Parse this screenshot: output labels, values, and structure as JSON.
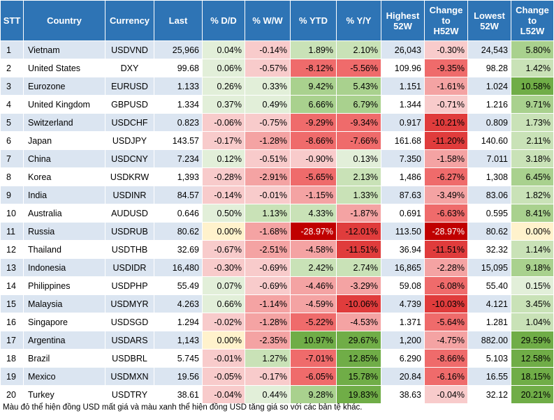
{
  "chart_data": {
    "type": "table",
    "columns": [
      "STT",
      "Country",
      "Currency",
      "Last",
      "% D/D",
      "% W/W",
      "% YTD",
      "% Y/Y",
      "Highest 52W",
      "Change to H52W",
      "Lowest 52W",
      "Change to L52W"
    ],
    "header_lines": [
      [
        "STT"
      ],
      [
        "Country"
      ],
      [
        "Currency"
      ],
      [
        "Last"
      ],
      [
        "% D/D"
      ],
      [
        "% W/W"
      ],
      [
        "% YTD"
      ],
      [
        "% Y/Y"
      ],
      [
        "Highest",
        "52W"
      ],
      [
        "Change",
        "to",
        "H52W"
      ],
      [
        "Lowest",
        "52W"
      ],
      [
        "Change",
        "to",
        "L52W"
      ]
    ],
    "rows": [
      [
        "1",
        "Vietnam",
        "USDVND",
        "25,966",
        "0.04%",
        "-0.14%",
        "1.89%",
        "2.10%",
        "26,043",
        "-0.30%",
        "24,543",
        "5.80%"
      ],
      [
        "2",
        "United States",
        "DXY",
        "99.68",
        "0.06%",
        "-0.57%",
        "-8.12%",
        "-5.56%",
        "109.96",
        "-9.35%",
        "98.28",
        "1.42%"
      ],
      [
        "3",
        "Eurozone",
        "EURUSD",
        "1.133",
        "0.26%",
        "0.33%",
        "9.42%",
        "5.43%",
        "1.151",
        "-1.61%",
        "1.024",
        "10.58%"
      ],
      [
        "4",
        "United Kingdom",
        "GBPUSD",
        "1.334",
        "0.37%",
        "0.49%",
        "6.66%",
        "6.79%",
        "1.344",
        "-0.71%",
        "1.216",
        "9.71%"
      ],
      [
        "5",
        "Switzerland",
        "USDCHF",
        "0.823",
        "-0.06%",
        "-0.75%",
        "-9.29%",
        "-9.34%",
        "0.917",
        "-10.21%",
        "0.809",
        "1.73%"
      ],
      [
        "6",
        "Japan",
        "USDJPY",
        "143.57",
        "-0.17%",
        "-1.28%",
        "-8.66%",
        "-7.66%",
        "161.68",
        "-11.20%",
        "140.60",
        "2.11%"
      ],
      [
        "7",
        "China",
        "USDCNY",
        "7.234",
        "0.12%",
        "-0.51%",
        "-0.90%",
        "0.13%",
        "7.350",
        "-1.58%",
        "7.011",
        "3.18%"
      ],
      [
        "8",
        "Korea",
        "USDKRW",
        "1,393",
        "-0.28%",
        "-2.91%",
        "-5.65%",
        "2.13%",
        "1,486",
        "-6.27%",
        "1,308",
        "6.45%"
      ],
      [
        "9",
        "India",
        "USDINR",
        "84.57",
        "-0.14%",
        "-0.01%",
        "-1.15%",
        "1.33%",
        "87.63",
        "-3.49%",
        "83.06",
        "1.82%"
      ],
      [
        "10",
        "Australia",
        "AUDUSD",
        "0.646",
        "0.50%",
        "1.13%",
        "4.33%",
        "-1.87%",
        "0.691",
        "-6.63%",
        "0.595",
        "8.41%"
      ],
      [
        "11",
        "Russia",
        "USDRUB",
        "80.62",
        "0.00%",
        "-1.68%",
        "-28.97%",
        "-12.01%",
        "113.50",
        "-28.97%",
        "80.62",
        "0.00%"
      ],
      [
        "12",
        "Thailand",
        "USDTHB",
        "32.69",
        "-0.67%",
        "-2.51%",
        "-4.58%",
        "-11.51%",
        "36.94",
        "-11.51%",
        "32.32",
        "1.14%"
      ],
      [
        "13",
        "Indonesia",
        "USDIDR",
        "16,480",
        "-0.30%",
        "-0.69%",
        "2.42%",
        "2.74%",
        "16,865",
        "-2.28%",
        "15,095",
        "9.18%"
      ],
      [
        "14",
        "Philippines",
        "USDPHP",
        "55.49",
        "0.07%",
        "-0.69%",
        "-4.46%",
        "-3.29%",
        "59.08",
        "-6.08%",
        "55.40",
        "0.15%"
      ],
      [
        "15",
        "Malaysia",
        "USDMYR",
        "4.263",
        "0.66%",
        "-1.14%",
        "-4.59%",
        "-10.06%",
        "4.739",
        "-10.03%",
        "4.121",
        "3.45%"
      ],
      [
        "16",
        "Singapore",
        "USDSGD",
        "1.294",
        "-0.02%",
        "-1.28%",
        "-5.22%",
        "-4.53%",
        "1.371",
        "-5.64%",
        "1.281",
        "1.04%"
      ],
      [
        "17",
        "Argentina",
        "USDARS",
        "1,143",
        "0.00%",
        "-2.35%",
        "10.97%",
        "29.67%",
        "1,200",
        "-4.75%",
        "882.00",
        "29.59%"
      ],
      [
        "18",
        "Brazil",
        "USDBRL",
        "5.745",
        "-0.01%",
        "1.27%",
        "-7.01%",
        "12.85%",
        "6.290",
        "-8.66%",
        "5.103",
        "12.58%"
      ],
      [
        "19",
        "Mexico",
        "USDMXN",
        "19.56",
        "-0.05%",
        "-0.17%",
        "-6.05%",
        "15.78%",
        "20.84",
        "-6.16%",
        "16.55",
        "18.15%"
      ],
      [
        "20",
        "Turkey",
        "USDTRY",
        "38.61",
        "-0.04%",
        "0.44%",
        "9.28%",
        "19.83%",
        "38.63",
        "-0.04%",
        "32.12",
        "20.21%"
      ]
    ],
    "heatmap_columns": [
      4,
      5,
      6,
      7,
      9,
      11
    ],
    "colors": {
      "header_bg": "#2e74b5",
      "row_odd": "#dbe5f1",
      "row_even": "#ffffff",
      "neg_light": "#f8cbcb",
      "neg_mid": "#ef6b6b",
      "neg_dark": "#c00000",
      "pos_light": "#e2efd9",
      "pos_mid": "#a9d18e",
      "pos_dark": "#70ad47",
      "neutral": "#fff2cc"
    }
  },
  "footnote": "Màu đỏ thể hiện đồng USD mất giá và màu xanh thể hiện đồng USD tăng giá so với các bản tệ khác."
}
